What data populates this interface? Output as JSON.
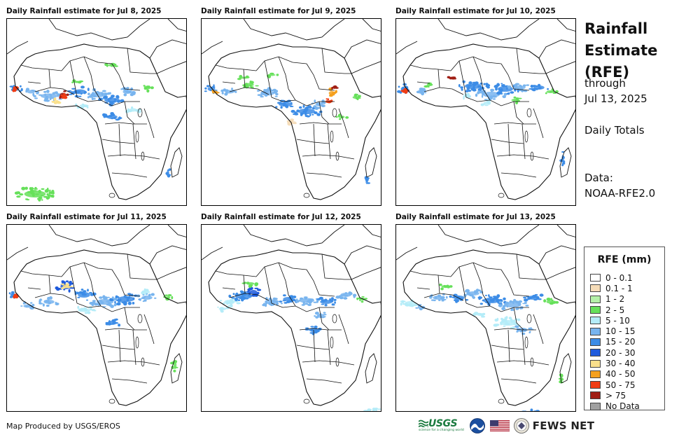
{
  "panels": [
    {
      "title": "Daily Rainfall estimate for Jul 8, 2025"
    },
    {
      "title": "Daily Rainfall estimate for Jul 9, 2025"
    },
    {
      "title": "Daily Rainfall estimate for Jul 10, 2025"
    },
    {
      "title": "Daily Rainfall estimate for Jul 11, 2025"
    },
    {
      "title": "Daily Rainfall estimate for Jul 12, 2025"
    },
    {
      "title": "Daily Rainfall estimate for Jul 13, 2025"
    }
  ],
  "side": {
    "title": "Rainfall Estimate (RFE)",
    "through": "through",
    "through_date": "Jul 13, 2025",
    "totals": "Daily Totals",
    "data_label": "Data:",
    "data_source": "NOAA-RFE2.0"
  },
  "legend": {
    "title": "RFE (mm)",
    "items": [
      {
        "label": "0 - 0.1",
        "color": "#ffffff"
      },
      {
        "label": "0.1 - 1",
        "color": "#f5dcb8"
      },
      {
        "label": "1 - 2",
        "color": "#b4f0a8"
      },
      {
        "label": "2 - 5",
        "color": "#66e05a"
      },
      {
        "label": "5 - 10",
        "color": "#b4ecf8"
      },
      {
        "label": "10 - 15",
        "color": "#78b4ee"
      },
      {
        "label": "15 - 20",
        "color": "#3c8ce6"
      },
      {
        "label": "20 - 30",
        "color": "#1e5adc"
      },
      {
        "label": "30 - 40",
        "color": "#fae08c"
      },
      {
        "label": "40 - 50",
        "color": "#f5a01e"
      },
      {
        "label": "50 - 75",
        "color": "#f03c14"
      },
      {
        "label": "> 75",
        "color": "#a01e14"
      },
      {
        "label": "No Data",
        "color": "#a0a0a0"
      }
    ]
  },
  "footer": {
    "credit": "Map Produced by USGS/EROS",
    "usgs": "USGS",
    "usgs_tagline": "science for a changing world",
    "fews": "FEWS NET"
  }
}
